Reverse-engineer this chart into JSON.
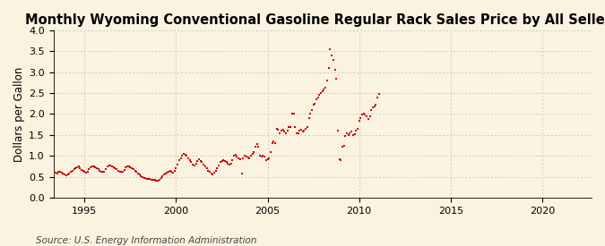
{
  "title": "Monthly Wyoming Conventional Gasoline Regular Rack Sales Price by All Sellers",
  "ylabel": "Dollars per Gallon",
  "source": "Source: U.S. Energy Information Administration",
  "xlim": [
    1993.3,
    2022.7
  ],
  "ylim": [
    0.0,
    4.0
  ],
  "xticks": [
    1995,
    2000,
    2005,
    2010,
    2015,
    2020
  ],
  "yticks": [
    0.0,
    0.5,
    1.0,
    1.5,
    2.0,
    2.5,
    3.0,
    3.5,
    4.0
  ],
  "background_color": "#faf3e0",
  "marker_color": "#cc0000",
  "marker_size": 3,
  "grid_color": "#bbbbbb",
  "title_fontsize": 10.5,
  "label_fontsize": 8.5,
  "tick_fontsize": 8,
  "source_fontsize": 7.5,
  "data": [
    [
      1993.08,
      0.5
    ],
    [
      1993.17,
      0.53
    ],
    [
      1993.25,
      0.55
    ],
    [
      1993.33,
      0.57
    ],
    [
      1993.42,
      0.6
    ],
    [
      1993.5,
      0.58
    ],
    [
      1993.58,
      0.62
    ],
    [
      1993.67,
      0.63
    ],
    [
      1993.75,
      0.6
    ],
    [
      1993.83,
      0.58
    ],
    [
      1993.92,
      0.55
    ],
    [
      1994.0,
      0.53
    ],
    [
      1994.08,
      0.55
    ],
    [
      1994.17,
      0.58
    ],
    [
      1994.25,
      0.62
    ],
    [
      1994.33,
      0.65
    ],
    [
      1994.42,
      0.68
    ],
    [
      1994.5,
      0.7
    ],
    [
      1994.58,
      0.72
    ],
    [
      1994.67,
      0.74
    ],
    [
      1994.75,
      0.7
    ],
    [
      1994.83,
      0.67
    ],
    [
      1994.92,
      0.65
    ],
    [
      1995.0,
      0.62
    ],
    [
      1995.08,
      0.6
    ],
    [
      1995.17,
      0.63
    ],
    [
      1995.25,
      0.68
    ],
    [
      1995.33,
      0.72
    ],
    [
      1995.42,
      0.74
    ],
    [
      1995.5,
      0.75
    ],
    [
      1995.58,
      0.73
    ],
    [
      1995.67,
      0.7
    ],
    [
      1995.75,
      0.68
    ],
    [
      1995.83,
      0.65
    ],
    [
      1995.92,
      0.63
    ],
    [
      1996.0,
      0.61
    ],
    [
      1996.08,
      0.63
    ],
    [
      1996.17,
      0.68
    ],
    [
      1996.25,
      0.75
    ],
    [
      1996.33,
      0.78
    ],
    [
      1996.42,
      0.76
    ],
    [
      1996.5,
      0.74
    ],
    [
      1996.58,
      0.72
    ],
    [
      1996.67,
      0.7
    ],
    [
      1996.75,
      0.68
    ],
    [
      1996.83,
      0.65
    ],
    [
      1996.92,
      0.63
    ],
    [
      1997.0,
      0.62
    ],
    [
      1997.08,
      0.63
    ],
    [
      1997.17,
      0.67
    ],
    [
      1997.25,
      0.72
    ],
    [
      1997.33,
      0.75
    ],
    [
      1997.42,
      0.74
    ],
    [
      1997.5,
      0.72
    ],
    [
      1997.58,
      0.7
    ],
    [
      1997.67,
      0.68
    ],
    [
      1997.75,
      0.65
    ],
    [
      1997.83,
      0.62
    ],
    [
      1997.92,
      0.58
    ],
    [
      1998.0,
      0.55
    ],
    [
      1998.08,
      0.52
    ],
    [
      1998.17,
      0.5
    ],
    [
      1998.25,
      0.48
    ],
    [
      1998.33,
      0.47
    ],
    [
      1998.42,
      0.46
    ],
    [
      1998.5,
      0.45
    ],
    [
      1998.58,
      0.44
    ],
    [
      1998.67,
      0.43
    ],
    [
      1998.75,
      0.43
    ],
    [
      1998.83,
      0.42
    ],
    [
      1998.92,
      0.41
    ],
    [
      1999.0,
      0.4
    ],
    [
      1999.08,
      0.42
    ],
    [
      1999.17,
      0.47
    ],
    [
      1999.25,
      0.52
    ],
    [
      1999.33,
      0.55
    ],
    [
      1999.42,
      0.58
    ],
    [
      1999.5,
      0.6
    ],
    [
      1999.58,
      0.63
    ],
    [
      1999.67,
      0.65
    ],
    [
      1999.75,
      0.62
    ],
    [
      1999.83,
      0.6
    ],
    [
      1999.92,
      0.65
    ],
    [
      2000.0,
      0.7
    ],
    [
      2000.08,
      0.8
    ],
    [
      2000.17,
      0.9
    ],
    [
      2000.25,
      0.95
    ],
    [
      2000.33,
      1.0
    ],
    [
      2000.42,
      1.05
    ],
    [
      2000.5,
      1.02
    ],
    [
      2000.58,
      1.0
    ],
    [
      2000.67,
      0.95
    ],
    [
      2000.75,
      0.9
    ],
    [
      2000.83,
      0.85
    ],
    [
      2000.92,
      0.8
    ],
    [
      2001.0,
      0.78
    ],
    [
      2001.08,
      0.82
    ],
    [
      2001.17,
      0.88
    ],
    [
      2001.25,
      0.92
    ],
    [
      2001.33,
      0.88
    ],
    [
      2001.42,
      0.85
    ],
    [
      2001.5,
      0.8
    ],
    [
      2001.58,
      0.75
    ],
    [
      2001.67,
      0.7
    ],
    [
      2001.75,
      0.65
    ],
    [
      2001.83,
      0.62
    ],
    [
      2001.92,
      0.58
    ],
    [
      2002.0,
      0.56
    ],
    [
      2002.08,
      0.6
    ],
    [
      2002.17,
      0.65
    ],
    [
      2002.25,
      0.7
    ],
    [
      2002.33,
      0.78
    ],
    [
      2002.42,
      0.85
    ],
    [
      2002.5,
      0.88
    ],
    [
      2002.58,
      0.9
    ],
    [
      2002.67,
      0.88
    ],
    [
      2002.75,
      0.85
    ],
    [
      2002.83,
      0.82
    ],
    [
      2002.92,
      0.8
    ],
    [
      2003.0,
      0.82
    ],
    [
      2003.08,
      0.9
    ],
    [
      2003.17,
      1.0
    ],
    [
      2003.25,
      1.02
    ],
    [
      2003.33,
      0.98
    ],
    [
      2003.42,
      0.95
    ],
    [
      2003.5,
      0.92
    ],
    [
      2003.58,
      0.58
    ],
    [
      2003.67,
      0.95
    ],
    [
      2003.75,
      1.0
    ],
    [
      2003.83,
      0.98
    ],
    [
      2003.92,
      0.96
    ],
    [
      2004.0,
      0.95
    ],
    [
      2004.08,
      1.0
    ],
    [
      2004.17,
      1.05
    ],
    [
      2004.25,
      1.1
    ],
    [
      2004.33,
      1.22
    ],
    [
      2004.42,
      1.28
    ],
    [
      2004.5,
      1.22
    ],
    [
      2004.58,
      1.0
    ],
    [
      2004.67,
      0.98
    ],
    [
      2004.75,
      1.0
    ],
    [
      2004.83,
      0.98
    ],
    [
      2004.92,
      0.9
    ],
    [
      2005.0,
      0.92
    ],
    [
      2005.08,
      0.95
    ],
    [
      2005.17,
      1.1
    ],
    [
      2005.25,
      1.3
    ],
    [
      2005.33,
      1.35
    ],
    [
      2005.42,
      1.3
    ],
    [
      2005.5,
      1.65
    ],
    [
      2005.58,
      1.62
    ],
    [
      2005.67,
      1.55
    ],
    [
      2005.75,
      1.6
    ],
    [
      2005.83,
      1.62
    ],
    [
      2005.92,
      1.58
    ],
    [
      2006.0,
      1.55
    ],
    [
      2006.08,
      1.6
    ],
    [
      2006.17,
      1.68
    ],
    [
      2006.25,
      1.7
    ],
    [
      2006.33,
      2.0
    ],
    [
      2006.42,
      2.0
    ],
    [
      2006.5,
      1.7
    ],
    [
      2006.58,
      1.55
    ],
    [
      2006.67,
      1.55
    ],
    [
      2006.75,
      1.6
    ],
    [
      2006.83,
      1.62
    ],
    [
      2006.92,
      1.58
    ],
    [
      2007.0,
      1.6
    ],
    [
      2007.08,
      1.65
    ],
    [
      2007.17,
      1.68
    ],
    [
      2007.25,
      1.9
    ],
    [
      2007.33,
      2.0
    ],
    [
      2007.42,
      2.1
    ],
    [
      2007.5,
      2.22
    ],
    [
      2007.58,
      2.25
    ],
    [
      2007.67,
      2.35
    ],
    [
      2007.75,
      2.4
    ],
    [
      2007.83,
      2.45
    ],
    [
      2007.92,
      2.5
    ],
    [
      2008.0,
      2.55
    ],
    [
      2008.08,
      2.58
    ],
    [
      2008.17,
      2.62
    ],
    [
      2008.25,
      2.8
    ],
    [
      2008.33,
      3.1
    ],
    [
      2008.42,
      3.55
    ],
    [
      2008.5,
      3.4
    ],
    [
      2008.58,
      3.3
    ],
    [
      2008.67,
      3.05
    ],
    [
      2008.75,
      2.85
    ],
    [
      2008.83,
      1.6
    ],
    [
      2008.92,
      0.92
    ],
    [
      2009.0,
      0.9
    ],
    [
      2009.08,
      1.22
    ],
    [
      2009.17,
      1.25
    ],
    [
      2009.25,
      1.48
    ],
    [
      2009.33,
      1.55
    ],
    [
      2009.42,
      1.5
    ],
    [
      2009.5,
      1.55
    ],
    [
      2009.58,
      1.58
    ],
    [
      2009.67,
      1.5
    ],
    [
      2009.75,
      1.52
    ],
    [
      2009.83,
      1.6
    ],
    [
      2009.92,
      1.65
    ],
    [
      2010.0,
      1.85
    ],
    [
      2010.08,
      1.9
    ],
    [
      2010.17,
      1.98
    ],
    [
      2010.25,
      2.0
    ],
    [
      2010.33,
      1.98
    ],
    [
      2010.42,
      1.95
    ],
    [
      2010.5,
      1.88
    ],
    [
      2010.58,
      1.95
    ],
    [
      2010.67,
      2.1
    ],
    [
      2010.75,
      2.15
    ],
    [
      2010.83,
      2.18
    ],
    [
      2010.92,
      2.22
    ],
    [
      2011.0,
      2.4
    ],
    [
      2011.08,
      2.48
    ]
  ]
}
